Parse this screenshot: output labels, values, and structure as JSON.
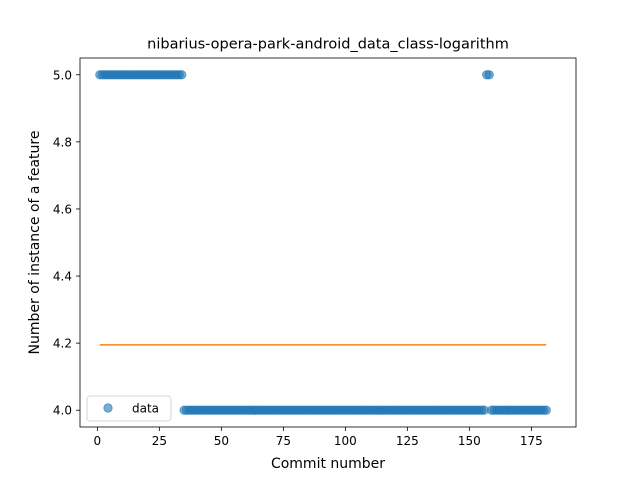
{
  "chart_data": {
    "type": "scatter",
    "title": "nibarius-opera-park-android_data_class-logarithm",
    "xlabel": "Commit number",
    "ylabel": "Number of instance of a feature",
    "xlim": [
      -7,
      193
    ],
    "ylim": [
      3.95,
      5.05
    ],
    "xticks": [
      0,
      25,
      50,
      75,
      100,
      125,
      150,
      175
    ],
    "yticks": [
      4.0,
      4.2,
      4.4,
      4.6,
      4.8,
      5.0
    ],
    "ytick_labels": [
      "4.0",
      "4.2",
      "4.4",
      "4.6",
      "4.8",
      "5.0"
    ],
    "grid": false,
    "legend": {
      "position": "lower-left",
      "entries": [
        "data"
      ]
    },
    "series": [
      {
        "name": "data",
        "marker": "circle",
        "color": "#1f77b4",
        "segments": [
          {
            "x_start": 1,
            "x_end": 34,
            "y": 5
          },
          {
            "x_start": 35,
            "x_end": 156,
            "y": 4
          },
          {
            "x_start": 157,
            "x_end": 158,
            "y": 5
          },
          {
            "x_start": 159,
            "x_end": 181,
            "y": 4
          }
        ]
      },
      {
        "marker": "line",
        "color": "#ff7f0e",
        "x": [
          1,
          181
        ],
        "y": [
          4.195,
          4.195
        ]
      }
    ]
  }
}
